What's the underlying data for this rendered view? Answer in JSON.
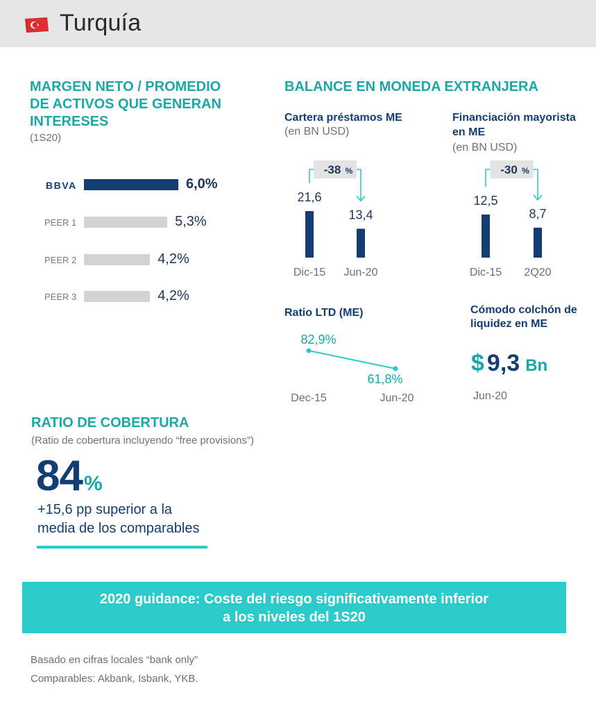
{
  "header": {
    "title": "Turquía"
  },
  "colors": {
    "teal": "#2ccaca",
    "teal_text": "#1aa7a7",
    "navy": "#123e74",
    "grey_bar": "#d3d3d3",
    "header_bg": "#e6e6e6"
  },
  "margin": {
    "title_line1": "MARGEN NETO / PROMEDIO",
    "title_line2": "DE ACTIVOS QUE GENERAN",
    "title_line3": "INTERESES",
    "period": "(1S20)",
    "bbva_logo": "BBVA"
  },
  "balance": {
    "title": "BALANCE EN MONEDA EXTRANJERA",
    "loans_title": "Cartera préstamos ME",
    "loans_unit": "(en BN USD)",
    "funding_title_line1": "Financiación mayorista",
    "funding_title_line2": "en ME",
    "funding_unit": "(en BN USD)",
    "ltd_title": "Ratio LTD (ME)",
    "liquidity_title_line1": "Cómodo colchón de",
    "liquidity_title_line2": "liquidez en ME",
    "liquidity_currency": "$",
    "liquidity_value": "9,3",
    "liquidity_unit": "Bn",
    "liquidity_date": "Jun-20"
  },
  "coverage": {
    "title": "RATIO DE COBERTURA",
    "subtitle": "(Ratio de cobertura incluyendo “free provisions”)",
    "value": "84",
    "pct_sign": "%",
    "text_line1": "+15,6 pp superior a la",
    "text_line2": "media de los comparables"
  },
  "guidance": {
    "line1": "2020 guidance: Coste del riesgo significativamente inferior",
    "line2": "a los niveles del 1S20"
  },
  "footnotes": {
    "line1": "Basado en cifras locales “bank only”",
    "line2": "Comparables: Akbank, Isbank, YKB."
  },
  "chart_data": [
    {
      "type": "bar",
      "orientation": "horizontal",
      "categories": [
        "BBVA",
        "PEER 1",
        "PEER 2",
        "PEER 3"
      ],
      "values": [
        6.0,
        5.3,
        4.2,
        4.2
      ],
      "value_labels": [
        "6,0%",
        "5,3%",
        "4,2%",
        "4,2%"
      ]
    },
    {
      "type": "bar",
      "categories": [
        "Dic-15",
        "Jun-20"
      ],
      "values": [
        21.6,
        13.4
      ],
      "value_labels": [
        "21,6",
        "13,4"
      ],
      "change_label": "-38",
      "change_pct": "%"
    },
    {
      "type": "bar",
      "categories": [
        "Dic-15",
        "2Q20"
      ],
      "values": [
        12.5,
        8.7
      ],
      "value_labels": [
        "12,5",
        "8,7"
      ],
      "change_label": "-30",
      "change_pct": "%"
    },
    {
      "type": "line",
      "x": [
        "Dec-15",
        "Jun-20"
      ],
      "values": [
        82.9,
        61.8
      ],
      "value_labels": [
        "82,9%",
        "61,8%"
      ]
    }
  ]
}
